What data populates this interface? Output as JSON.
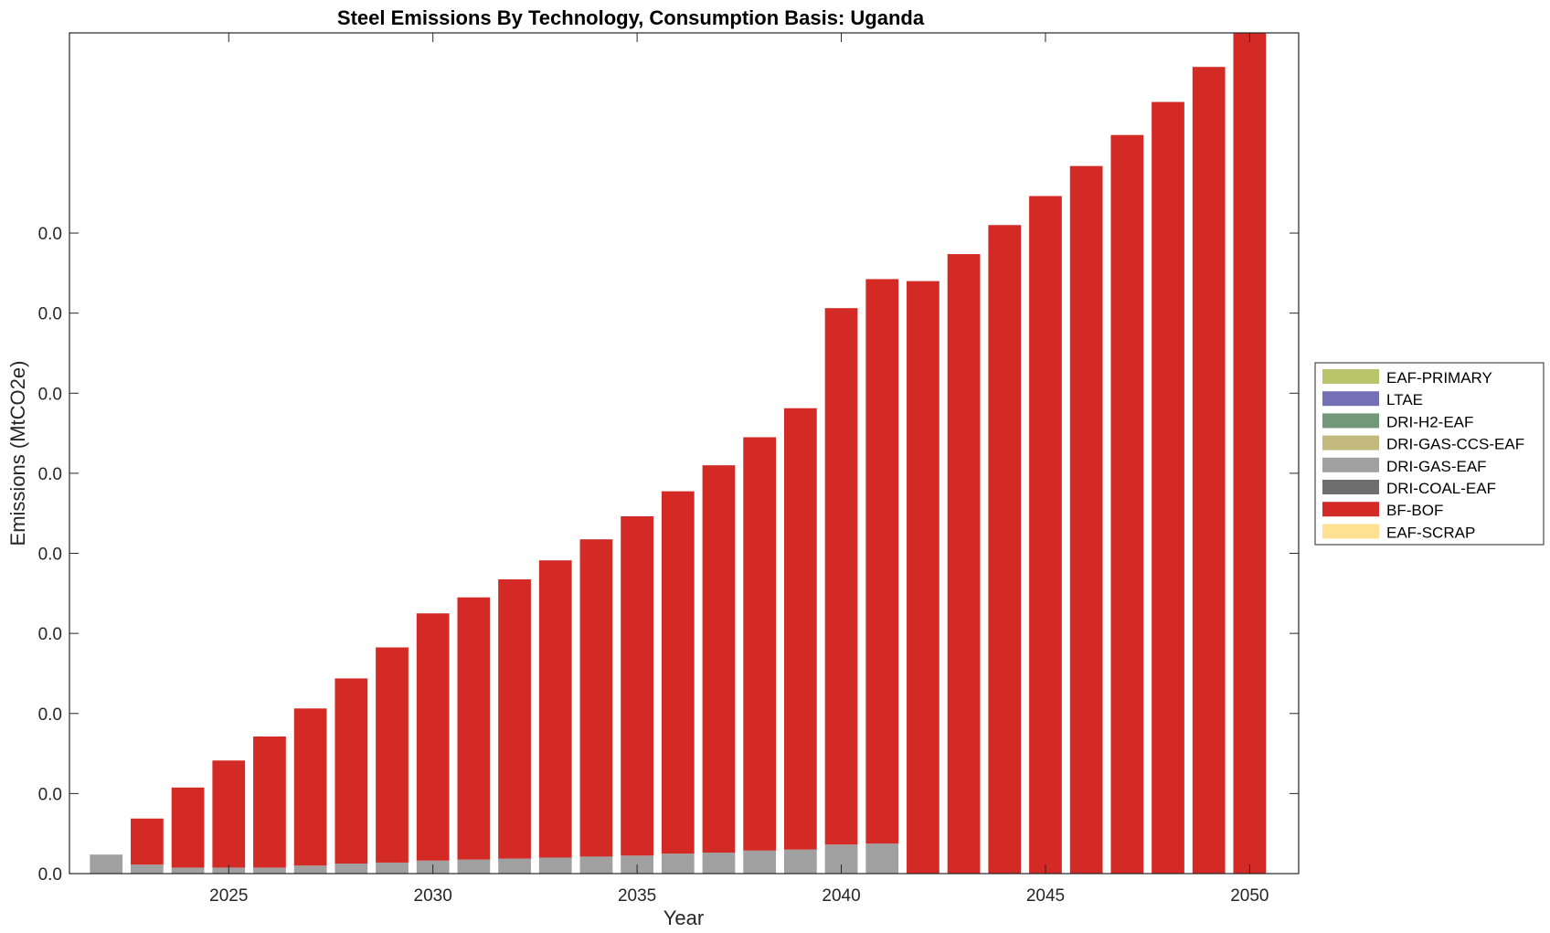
{
  "chart_data": {
    "type": "bar",
    "stacked": true,
    "title": "Steel Emissions By Technology, Consumption Basis: Uganda",
    "xlabel": "Year",
    "ylabel": "Emissions (MtCO2e)",
    "x": [
      2022,
      2023,
      2024,
      2025,
      2026,
      2027,
      2028,
      2029,
      2030,
      2031,
      2032,
      2033,
      2034,
      2035,
      2036,
      2037,
      2038,
      2039,
      2040,
      2041,
      2042,
      2043,
      2044,
      2045,
      2046,
      2047,
      2048,
      2049,
      2050
    ],
    "xticks": [
      "2025",
      "2030",
      "2035",
      "2040",
      "2045",
      "2050"
    ],
    "yticks": [
      "0.0",
      "0.0",
      "0.0",
      "0.0",
      "0.0",
      "0.0",
      "0.0",
      "0.0",
      "0.0"
    ],
    "ylim": [
      0,
      0.0084
    ],
    "legend_position": "right",
    "series": [
      {
        "name": "EAF-PRIMARY",
        "color": "#bac46a",
        "values": [
          0,
          0,
          0,
          0,
          0,
          0,
          0,
          0,
          0,
          0,
          0,
          0,
          0,
          0,
          0,
          0,
          0,
          0,
          0,
          0,
          0,
          0,
          0,
          0,
          0,
          0,
          0,
          0,
          0
        ]
      },
      {
        "name": "LTAE",
        "color": "#7470b8",
        "values": [
          0,
          0,
          0,
          0,
          0,
          0,
          0,
          0,
          0,
          0,
          0,
          0,
          0,
          0,
          0,
          0,
          0,
          0,
          0,
          0,
          0,
          0,
          0,
          0,
          0,
          0,
          0,
          0,
          0
        ]
      },
      {
        "name": "DRI-H2-EAF",
        "color": "#72977a",
        "values": [
          0,
          0,
          0,
          0,
          0,
          0,
          0,
          0,
          0,
          0,
          0,
          0,
          0,
          0,
          0,
          0,
          0,
          0,
          0,
          0,
          0,
          0,
          0,
          0,
          0,
          0,
          0,
          0,
          0
        ]
      },
      {
        "name": "DRI-GAS-CCS-EAF",
        "color": "#c3b97c",
        "values": [
          0,
          0,
          0,
          0,
          0,
          0,
          0,
          0,
          0,
          0,
          0,
          0,
          0,
          0,
          0,
          0,
          0,
          0,
          0,
          0,
          0,
          0,
          0,
          0,
          0,
          0,
          0,
          0,
          0
        ]
      },
      {
        "name": "DRI-GAS-EAF",
        "color": "#a0a0a0",
        "values": [
          0.00019,
          9e-05,
          6e-05,
          6e-05,
          6e-05,
          8e-05,
          0.0001,
          0.00011,
          0.00013,
          0.00014,
          0.00015,
          0.00016,
          0.00017,
          0.00018,
          0.0002,
          0.00021,
          0.00023,
          0.00024,
          0.00029,
          0.0003,
          0,
          0,
          0,
          0,
          0,
          0,
          0,
          0,
          0
        ]
      },
      {
        "name": "DRI-COAL-EAF",
        "color": "#6e6e6e",
        "values": [
          0,
          0,
          0,
          0,
          0,
          0,
          0,
          0,
          0,
          0,
          0,
          0,
          0,
          0,
          0,
          0,
          0,
          0,
          0,
          0,
          0,
          0,
          0,
          0,
          0,
          0,
          0,
          0,
          0
        ]
      },
      {
        "name": "BF-BOF",
        "color": "#d42a25",
        "values": [
          0,
          0.00046,
          0.0008,
          0.00107,
          0.00131,
          0.00157,
          0.00185,
          0.00215,
          0.00247,
          0.00262,
          0.00279,
          0.00297,
          0.00317,
          0.00339,
          0.00362,
          0.00387,
          0.00413,
          0.00441,
          0.00536,
          0.00564,
          0.00592,
          0.00619,
          0.00648,
          0.00677,
          0.00707,
          0.00738,
          0.00771,
          0.00806,
          0.0084
        ]
      },
      {
        "name": "EAF-SCRAP",
        "color": "#ffe291",
        "values": [
          0,
          0,
          0,
          0,
          0,
          0,
          0,
          0,
          0,
          0,
          0,
          0,
          0,
          0,
          0,
          0,
          0,
          0,
          0,
          0,
          0,
          0,
          0,
          0,
          0,
          0,
          0,
          0,
          0
        ]
      }
    ]
  }
}
